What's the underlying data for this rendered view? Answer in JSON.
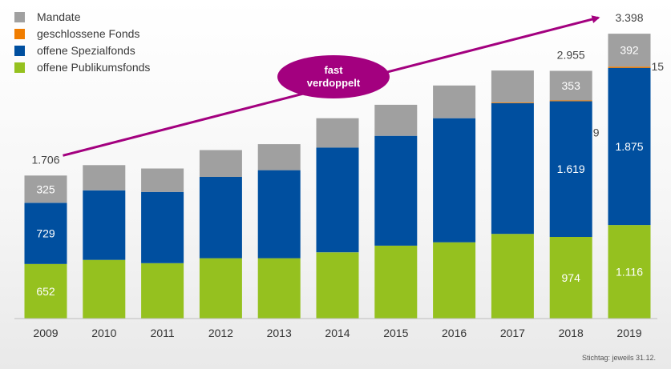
{
  "chart_data": {
    "type": "bar",
    "stacked": true,
    "categories": [
      "2009",
      "2010",
      "2011",
      "2012",
      "2013",
      "2014",
      "2015",
      "2016",
      "2017",
      "2018",
      "2019"
    ],
    "series": [
      {
        "name": "offene Publikumsfonds",
        "color": "#95c11f",
        "values": [
          652,
          700,
          660,
          720,
          720,
          790,
          870,
          910,
          1010,
          974,
          1116
        ]
      },
      {
        "name": "offene Spezialfonds",
        "color": "#004f9f",
        "values": [
          729,
          830,
          850,
          970,
          1050,
          1250,
          1310,
          1480,
          1560,
          1619,
          1875
        ]
      },
      {
        "name": "geschlossene Fonds",
        "color": "#f07d00",
        "values": [
          0,
          0,
          0,
          0,
          0,
          0,
          0,
          0,
          9,
          9,
          15
        ]
      },
      {
        "name": "Mandate",
        "color": "#a0a0a0",
        "values": [
          325,
          300,
          280,
          320,
          310,
          350,
          370,
          390,
          380,
          353,
          392
        ]
      }
    ],
    "ylim": [
      0,
      3800
    ],
    "legend_position": "top-left",
    "grid": false,
    "data_labels": [
      {
        "category": "2009",
        "series": "offene Publikumsfonds",
        "text": "652"
      },
      {
        "category": "2009",
        "series": "offene Spezialfonds",
        "text": "729"
      },
      {
        "category": "2009",
        "series": "Mandate",
        "text": "325"
      },
      {
        "category": "2018",
        "series": "offene Publikumsfonds",
        "text": "974"
      },
      {
        "category": "2018",
        "series": "offene Spezialfonds",
        "text": "1.619"
      },
      {
        "category": "2018",
        "series": "Mandate",
        "text": "353"
      },
      {
        "category": "2019",
        "series": "offene Publikumsfonds",
        "text": "1.116"
      },
      {
        "category": "2019",
        "series": "offene Spezialfonds",
        "text": "1.875"
      },
      {
        "category": "2019",
        "series": "Mandate",
        "text": "392"
      }
    ],
    "side_labels": [
      {
        "category": "2018",
        "series": "geschlossene Fonds",
        "text": "9"
      },
      {
        "category": "2019",
        "series": "geschlossene Fonds",
        "text": "15"
      }
    ],
    "totals": [
      {
        "category": "2009",
        "text": "1.706"
      },
      {
        "category": "2018",
        "text": "2.955"
      },
      {
        "category": "2019",
        "text": "3.398"
      }
    ],
    "trend_arrow": {
      "from_category": "2009",
      "to_category": "2019",
      "color": "#a3007f"
    },
    "callout": {
      "line1": "fast",
      "line2": "verdoppelt",
      "color": "#a3007f"
    },
    "footnote": "Stichtag: jeweils 31.12."
  }
}
